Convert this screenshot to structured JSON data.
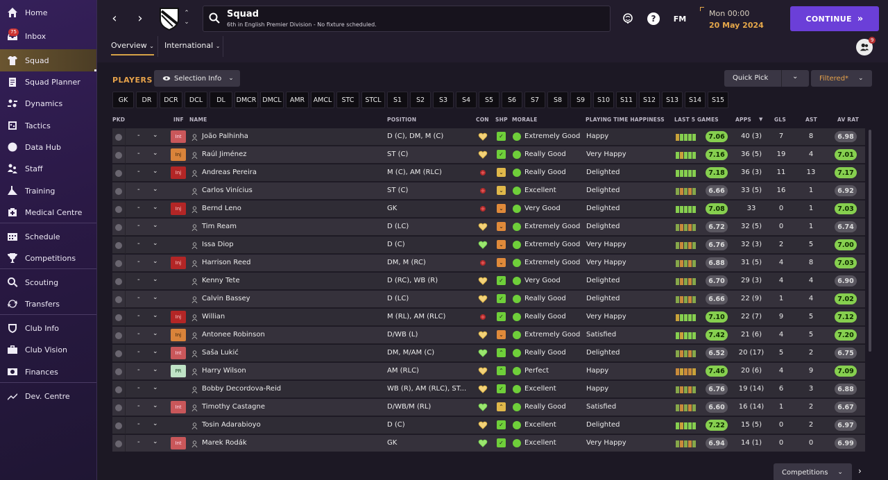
{
  "sidebar": {
    "items": [
      {
        "label": "Home",
        "icon": "home-icon"
      },
      {
        "label": "Inbox",
        "icon": "inbox-icon",
        "badge": "75"
      },
      {
        "label": "Squad",
        "icon": "squad-shirt-icon",
        "active": true
      },
      {
        "label": "Squad Planner",
        "icon": "clipboard-icon"
      },
      {
        "label": "Dynamics",
        "icon": "dynamics-icon"
      },
      {
        "label": "Tactics",
        "icon": "tactics-icon"
      },
      {
        "label": "Data Hub",
        "icon": "data-hub-icon"
      },
      {
        "label": "Staff",
        "icon": "staff-icon"
      },
      {
        "label": "Training",
        "icon": "training-icon"
      },
      {
        "label": "Medical Centre",
        "icon": "medical-icon"
      },
      {
        "label": "Schedule",
        "icon": "schedule-icon"
      },
      {
        "label": "Competitions",
        "icon": "trophy-icon"
      },
      {
        "label": "Scouting",
        "icon": "search-icon"
      },
      {
        "label": "Transfers",
        "icon": "transfers-icon"
      },
      {
        "label": "Club Info",
        "icon": "shield-icon"
      },
      {
        "label": "Club Vision",
        "icon": "briefcase-icon"
      },
      {
        "label": "Finances",
        "icon": "finances-icon"
      },
      {
        "label": "Dev. Centre",
        "icon": "dev-centre-icon"
      }
    ]
  },
  "header": {
    "title": "Squad",
    "subtitle": "6th in English Premier Division - No fixture scheduled.",
    "fm_label": "FM",
    "date_time": "Mon 00:00",
    "date": "20 May 2024",
    "continue_label": "CONTINUE",
    "tabs": [
      {
        "label": "Overview"
      },
      {
        "label": "International"
      }
    ],
    "people_badge": "9"
  },
  "toolbar": {
    "players_label": "PLAYERS",
    "selection_info": "Selection Info",
    "quick_pick": "Quick Pick",
    "filtered": "Filtered*"
  },
  "positions": [
    "GK",
    "DR",
    "DCR",
    "DCL",
    "DL",
    "DMCR",
    "DMCL",
    "AMR",
    "AMCL",
    "STC",
    "STCL",
    "S1",
    "S2",
    "S3",
    "S4",
    "S5",
    "S6",
    "S7",
    "S8",
    "S9",
    "S10",
    "S11",
    "S12",
    "S13",
    "S14",
    "S15"
  ],
  "columns": {
    "pkd": "PKD",
    "inf": "INF",
    "name": "NAME",
    "position": "POSITION",
    "con": "CON",
    "shp": "SHP",
    "morale": "MORALE",
    "pth": "PLAYING TIME HAPPINESS",
    "last5": "LAST 5 GAMES",
    "apps": "APPS",
    "gls": "GLS",
    "ast": "AST",
    "avrat": "AV RAT"
  },
  "players": [
    {
      "dash": "-",
      "inf": "Int",
      "inf_type": "int",
      "name": "João Palhinha",
      "position": "D (C), DM, M (C)",
      "morale": "Extremely Good",
      "pth": "Happy",
      "form": "7.06",
      "form_hi": true,
      "apps": "40 (3)",
      "gls": "7",
      "ast": "8",
      "avrat": "6.98",
      "avrat_hi": false,
      "con": "gold",
      "shp": "green-up"
    },
    {
      "dash": "-",
      "inf": "Inj",
      "inf_type": "injo",
      "name": "Raúl Jiménez",
      "position": "ST (C)",
      "morale": "Really Good",
      "pth": "Very Happy",
      "form": "7.16",
      "form_hi": true,
      "apps": "36 (5)",
      "gls": "19",
      "ast": "4",
      "avrat": "7.01",
      "avrat_hi": true,
      "con": "gold",
      "shp": "green-up"
    },
    {
      "dash": "-",
      "inf": "Inj",
      "inf_type": "inj",
      "name": "Andreas Pereira",
      "position": "M (C), AM (RLC)",
      "morale": "Really Good",
      "pth": "Delighted",
      "form": "7.18",
      "form_hi": true,
      "apps": "36 (3)",
      "gls": "11",
      "ast": "13",
      "avrat": "7.17",
      "avrat_hi": true,
      "con": "injury",
      "shp": "gold-down"
    },
    {
      "dash": "-",
      "inf": "",
      "inf_type": "",
      "name": "Carlos Vinícius",
      "position": "ST (C)",
      "morale": "Excellent",
      "pth": "Delighted",
      "form": "6.66",
      "form_hi": false,
      "apps": "33 (5)",
      "gls": "16",
      "ast": "1",
      "avrat": "6.92",
      "avrat_hi": false,
      "con": "injury",
      "shp": "gold-down"
    },
    {
      "dash": "-",
      "inf": "Inj",
      "inf_type": "inj",
      "name": "Bernd Leno",
      "position": "GK",
      "morale": "Very Good",
      "pth": "Delighted",
      "form": "7.08",
      "form_hi": true,
      "apps": "33",
      "gls": "0",
      "ast": "1",
      "avrat": "7.03",
      "avrat_hi": true,
      "con": "injury",
      "shp": "orange-down"
    },
    {
      "dash": "-",
      "inf": "",
      "inf_type": "",
      "name": "Tim Ream",
      "position": "D (LC)",
      "morale": "Extremely Good",
      "pth": "Delighted",
      "form": "6.72",
      "form_hi": false,
      "apps": "32 (5)",
      "gls": "0",
      "ast": "1",
      "avrat": "6.74",
      "avrat_hi": false,
      "con": "gold",
      "shp": "orange-down"
    },
    {
      "dash": "-",
      "inf": "",
      "inf_type": "",
      "name": "Issa Diop",
      "position": "D (C)",
      "morale": "Extremely Good",
      "pth": "Very Happy",
      "form": "6.76",
      "form_hi": false,
      "apps": "32 (3)",
      "gls": "2",
      "ast": "5",
      "avrat": "7.00",
      "avrat_hi": true,
      "con": "green",
      "shp": "orange-down"
    },
    {
      "dash": "-",
      "inf": "Inj",
      "inf_type": "inj",
      "name": "Harrison Reed",
      "position": "DM, M (RC)",
      "morale": "Extremely Good",
      "pth": "Very Happy",
      "form": "6.88",
      "form_hi": false,
      "apps": "31 (5)",
      "gls": "4",
      "ast": "8",
      "avrat": "7.03",
      "avrat_hi": true,
      "con": "injury",
      "shp": "orange-down"
    },
    {
      "dash": "-",
      "inf": "",
      "inf_type": "",
      "name": "Kenny Tete",
      "position": "D (RC), WB (R)",
      "morale": "Very Good",
      "pth": "Delighted",
      "form": "6.70",
      "form_hi": false,
      "apps": "29 (3)",
      "gls": "4",
      "ast": "4",
      "avrat": "6.90",
      "avrat_hi": false,
      "con": "gold",
      "shp": "green-up"
    },
    {
      "dash": "-",
      "inf": "",
      "inf_type": "",
      "name": "Calvin Bassey",
      "position": "D (LC)",
      "morale": "Really Good",
      "pth": "Delighted",
      "form": "6.66",
      "form_hi": false,
      "apps": "22 (9)",
      "gls": "1",
      "ast": "4",
      "avrat": "7.02",
      "avrat_hi": true,
      "con": "gold",
      "shp": "green-up"
    },
    {
      "dash": "-",
      "inf": "Inj",
      "inf_type": "inj",
      "name": "Willian",
      "position": "M (RL), AM (RLC)",
      "morale": "Really Good",
      "pth": "Very Happy",
      "form": "7.10",
      "form_hi": true,
      "apps": "22 (7)",
      "gls": "9",
      "ast": "5",
      "avrat": "7.12",
      "avrat_hi": true,
      "con": "injury",
      "shp": "green-up"
    },
    {
      "dash": "-",
      "inf": "Inj",
      "inf_type": "injo",
      "name": "Antonee Robinson",
      "position": "D/WB (L)",
      "morale": "Extremely Good",
      "pth": "Satisfied",
      "form": "7.42",
      "form_hi": true,
      "apps": "21 (6)",
      "gls": "4",
      "ast": "5",
      "avrat": "7.20",
      "avrat_hi": true,
      "con": "gold",
      "shp": "orange-down"
    },
    {
      "dash": "-",
      "inf": "Int",
      "inf_type": "int",
      "name": "Saša Lukić",
      "position": "DM, M/AM (C)",
      "morale": "Really Good",
      "pth": "Delighted",
      "form": "6.52",
      "form_hi": false,
      "apps": "20 (17)",
      "gls": "5",
      "ast": "2",
      "avrat": "6.75",
      "avrat_hi": false,
      "con": "green",
      "shp": "green-caret"
    },
    {
      "dash": "-",
      "inf": "PR",
      "inf_type": "pr",
      "name": "Harry Wilson",
      "position": "AM (RLC)",
      "morale": "Perfect",
      "pth": "Happy",
      "form": "7.46",
      "form_hi": true,
      "apps": "20 (6)",
      "gls": "4",
      "ast": "9",
      "avrat": "7.09",
      "avrat_hi": true,
      "con": "gold",
      "shp": "green-caret"
    },
    {
      "dash": "-",
      "inf": "",
      "inf_type": "",
      "name": "Bobby Decordova-Reid",
      "position": "WB (R), AM (RLC), ST...",
      "morale": "Excellent",
      "pth": "Happy",
      "form": "6.76",
      "form_hi": false,
      "apps": "19 (14)",
      "gls": "6",
      "ast": "3",
      "avrat": "6.88",
      "avrat_hi": false,
      "con": "gold",
      "shp": "green-up"
    },
    {
      "dash": "-",
      "inf": "Int",
      "inf_type": "int",
      "name": "Timothy Castagne",
      "position": "D/WB/M (RL)",
      "morale": "Really Good",
      "pth": "Satisfied",
      "form": "6.60",
      "form_hi": false,
      "apps": "16 (14)",
      "gls": "1",
      "ast": "2",
      "avrat": "6.67",
      "avrat_hi": false,
      "con": "green",
      "shp": "gold-caret"
    },
    {
      "dash": "-",
      "inf": "",
      "inf_type": "",
      "name": "Tosin Adarabioyo",
      "position": "D (C)",
      "morale": "Excellent",
      "pth": "Delighted",
      "form": "7.22",
      "form_hi": true,
      "apps": "15 (5)",
      "gls": "0",
      "ast": "2",
      "avrat": "6.97",
      "avrat_hi": false,
      "con": "gold",
      "shp": "green-up"
    },
    {
      "dash": "-",
      "inf": "Int",
      "inf_type": "int",
      "name": "Marek Rodák",
      "position": "GK",
      "morale": "Excellent",
      "pth": "Very Happy",
      "form": "6.94",
      "form_hi": false,
      "apps": "14 (1)",
      "gls": "0",
      "ast": "0",
      "avrat": "6.99",
      "avrat_hi": false,
      "con": "green",
      "shp": "green-up"
    }
  ],
  "footer": {
    "competitions": "Competitions"
  }
}
